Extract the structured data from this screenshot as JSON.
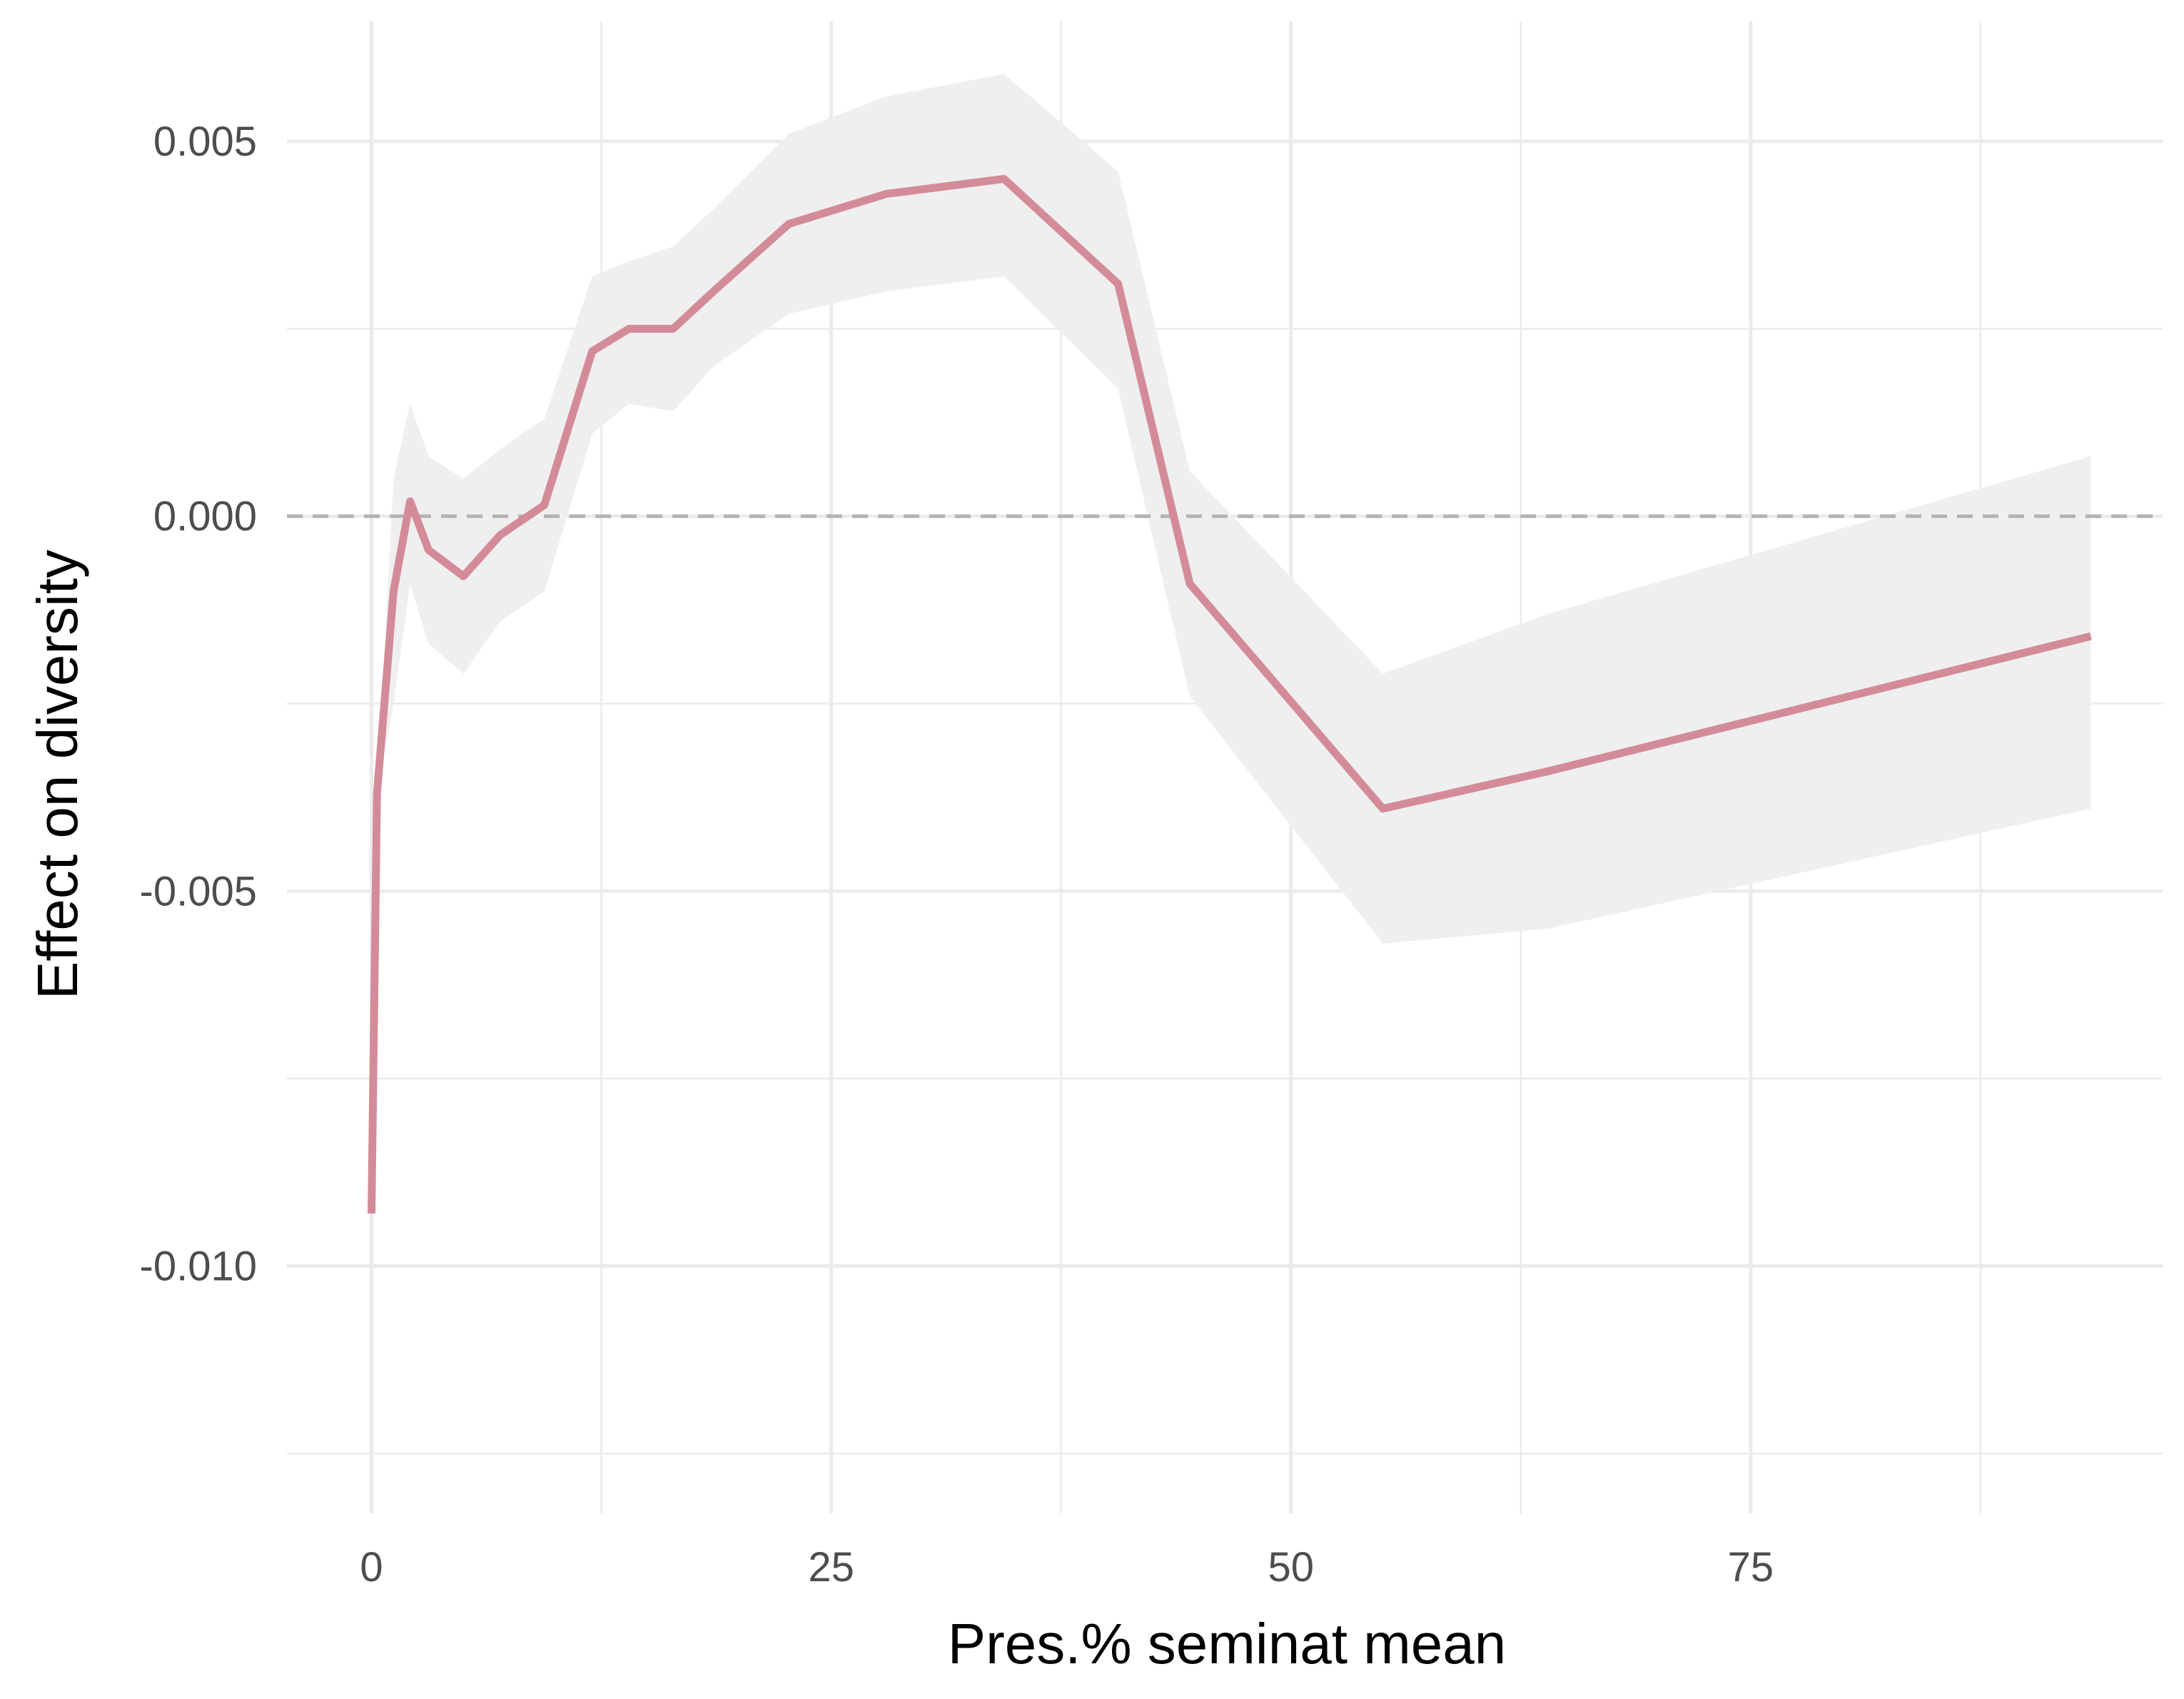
{
  "chart_data": {
    "type": "line",
    "title": "",
    "xlabel": "Pres.% seminat mean",
    "ylabel": "Effect on diversity",
    "xlim": [
      -4.6,
      97.4
    ],
    "ylim": [
      -0.0133,
      0.0066
    ],
    "x_ticks": [
      {
        "value": 0,
        "label": "0"
      },
      {
        "value": 25,
        "label": "25"
      },
      {
        "value": 50,
        "label": "50"
      },
      {
        "value": 75,
        "label": "75"
      }
    ],
    "x_minor_ticks": [
      12.5,
      37.5,
      62.5,
      87.5
    ],
    "y_ticks": [
      {
        "value": 0.005,
        "label": "0.005"
      },
      {
        "value": 0.0,
        "label": "0.000"
      },
      {
        "value": -0.005,
        "label": "-0.005"
      },
      {
        "value": -0.01,
        "label": "-0.010"
      }
    ],
    "y_minor_ticks": [
      0.0025,
      -0.0025,
      -0.0075,
      -0.0125
    ],
    "reference_line": {
      "y": 0.0,
      "style": "dashed",
      "color": "#b3b3b3"
    },
    "grid": true,
    "line_color": "#d48b99",
    "ribbon_color": "#efefef",
    "series": [
      {
        "x": [
          0,
          0.3,
          1.2,
          2.1,
          3.1,
          5.0,
          7.0,
          9.4,
          12.0,
          14.0,
          16.4,
          18.6,
          22.7,
          28.0,
          34.4,
          40.6,
          44.5,
          55.0,
          64.0,
          93.5
        ],
        "y": [
          -0.0093,
          -0.0037,
          -0.001,
          0.0002,
          -0.00045,
          -0.0008,
          -0.00025,
          0.00015,
          0.0022,
          0.0025,
          0.0025,
          0.003,
          0.0039,
          0.0043,
          0.0045,
          0.0031,
          -0.0009,
          -0.0039,
          -0.0034,
          -0.0016
        ],
        "ci_lower": [
          -0.0093,
          -0.0037,
          -0.0025,
          -0.0009,
          -0.0017,
          -0.0021,
          -0.0014,
          -0.001,
          0.0011,
          0.0015,
          0.0014,
          0.002,
          0.0027,
          0.003,
          0.0032,
          0.0017,
          -0.0024,
          -0.0057,
          -0.0055,
          -0.0039
        ],
        "ci_upper": [
          -0.0093,
          -0.0037,
          0.0005,
          0.0015,
          0.0008,
          0.0005,
          0.0009,
          0.0013,
          0.0032,
          0.0034,
          0.0036,
          0.0041,
          0.0051,
          0.0056,
          0.0059,
          0.0046,
          0.0006,
          -0.0021,
          -0.0013,
          0.0008
        ]
      }
    ]
  }
}
